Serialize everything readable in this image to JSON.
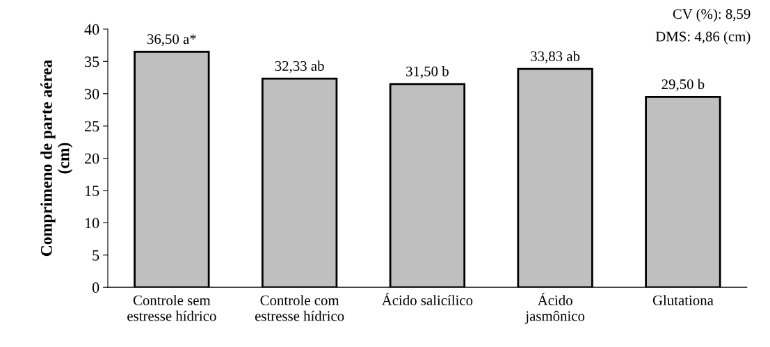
{
  "chart_data": {
    "type": "bar",
    "ylabel": "Comprimeno de parte aérea\n(cm)",
    "categories": [
      "Controle sem\nestresse hídrico",
      "Controle com\nestresse hídrico",
      "Ácido salicílico",
      "Ácido\njasmônico",
      "Glutationa"
    ],
    "values": [
      36.5,
      32.33,
      31.5,
      33.83,
      29.5
    ],
    "value_labels": [
      "36,50 a*",
      "32,33 ab",
      "31,50 b",
      "33,83 ab",
      "29,50 b"
    ],
    "color": "#bfbfbf",
    "ylim": [
      0,
      40
    ],
    "yticks": [
      0,
      5,
      10,
      15,
      20,
      25,
      30,
      35,
      40
    ],
    "annotations": [
      "CV (%): 8,59",
      "DMS: 4,86 (cm)"
    ],
    "grid": false,
    "legend": false
  }
}
